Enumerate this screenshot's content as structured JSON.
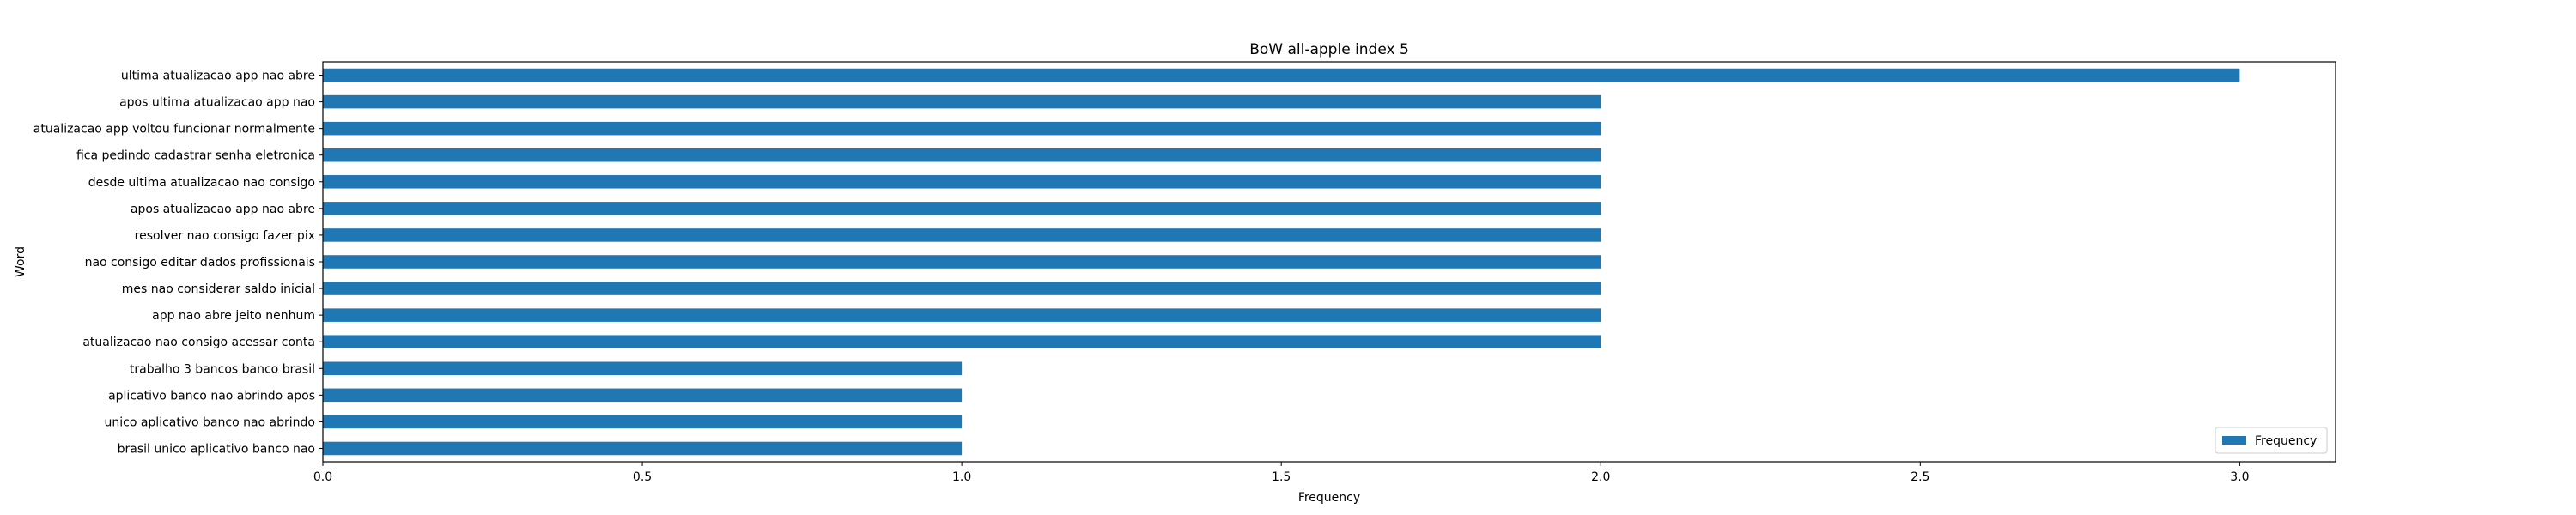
{
  "chart_data": {
    "type": "bar",
    "orientation": "horizontal",
    "title": "BoW all-apple index 5",
    "xlabel": "Frequency",
    "ylabel": "Word",
    "xlim": [
      0,
      3.15
    ],
    "xticks": [
      0.0,
      0.5,
      1.0,
      1.5,
      2.0,
      2.5,
      3.0
    ],
    "xtick_labels": [
      "0.0",
      "0.5",
      "1.0",
      "1.5",
      "2.0",
      "2.5",
      "3.0"
    ],
    "grid": false,
    "legend_position": "bottom-right",
    "categories": [
      "ultima atualizacao app nao abre",
      "apos ultima atualizacao app nao",
      "atualizacao app voltou funcionar normalmente",
      "fica pedindo cadastrar senha eletronica",
      "desde ultima atualizacao nao consigo",
      "apos atualizacao app nao abre",
      "resolver nao consigo fazer pix",
      "nao consigo editar dados profissionais",
      "mes nao considerar saldo inicial",
      "app nao abre jeito nenhum",
      "atualizacao nao consigo acessar conta",
      "trabalho 3 bancos banco brasil",
      "aplicativo banco nao abrindo apos",
      "unico aplicativo banco nao abrindo",
      "brasil unico aplicativo banco nao"
    ],
    "series": [
      {
        "name": "Frequency",
        "color": "#1f77b4",
        "values": [
          3,
          2,
          2,
          2,
          2,
          2,
          2,
          2,
          2,
          2,
          2,
          1,
          1,
          1,
          1
        ]
      }
    ]
  }
}
